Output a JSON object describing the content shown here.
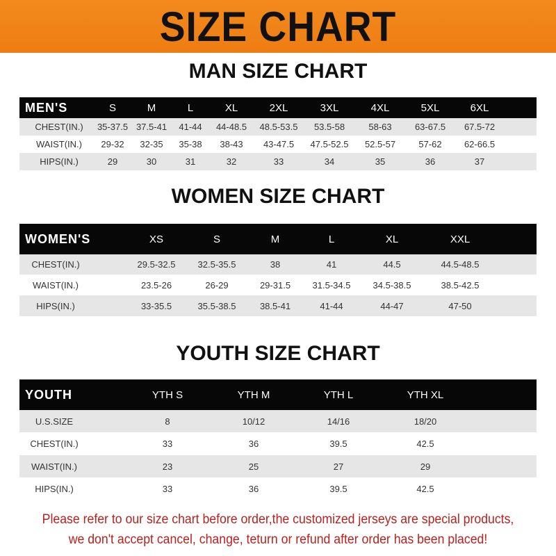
{
  "banner_title": "SIZE CHART",
  "colors": {
    "banner": "#f08418",
    "header_row": "#070707",
    "note": "#b8221e"
  },
  "men": {
    "title": "MAN SIZE CHART",
    "header": [
      "MEN'S",
      "S",
      "M",
      "L",
      "XL",
      "2XL",
      "3XL",
      "4XL",
      "5XL",
      "6XL"
    ],
    "rows": [
      [
        "CHEST(IN.)",
        "35-37.5",
        "37.5-41",
        "41-44",
        "44-48.5",
        "48.5-53.5",
        "53.5-58",
        "58-63",
        "63-67.5",
        "67.5-72"
      ],
      [
        "WAIST(IN.)",
        "29-32",
        "32-35",
        "35-38",
        "38-43",
        "43-47.5",
        "47.5-52.5",
        "52.5-57",
        "57-62",
        "62-66.5"
      ],
      [
        "HIPS(IN.)",
        "29",
        "30",
        "31",
        "32",
        "33",
        "34",
        "35",
        "36",
        "37"
      ]
    ]
  },
  "women": {
    "title": "WOMEN SIZE CHART",
    "header": [
      "WOMEN'S",
      "XS",
      "S",
      "M",
      "L",
      "XL",
      "XXL"
    ],
    "rows": [
      [
        "CHEST(IN.)",
        "29.5-32.5",
        "32.5-35.5",
        "38",
        "41",
        "44.5",
        "44.5-48.5"
      ],
      [
        "WAIST(IN.)",
        "23.5-26",
        "26-29",
        "29-31.5",
        "31.5-34.5",
        "34.5-38.5",
        "38.5-42.5"
      ],
      [
        "HIPS(IN.)",
        "33-35.5",
        "35.5-38.5",
        "38.5-41",
        "41-44",
        "44-47",
        "47-50"
      ]
    ]
  },
  "youth": {
    "title": "YOUTH SIZE CHART",
    "header": [
      "YOUTH",
      "YTH S",
      "YTH M",
      "YTH L",
      "YTH XL"
    ],
    "rows": [
      [
        "U.S.SIZE",
        "8",
        "10/12",
        "14/16",
        "18/20"
      ],
      [
        "CHEST(IN.)",
        "33",
        "36",
        "39.5",
        "42.5"
      ],
      [
        "WAIST(IN.)",
        "23",
        "25",
        "27",
        "29"
      ],
      [
        "HIPS(IN.)",
        "33",
        "36",
        "39.5",
        "42.5"
      ]
    ]
  },
  "note": {
    "line1": "Please refer to our size chart before order,the customized jerseys are special products,",
    "line2": "we don't accept cancel, change, teturn or refund after order has been placed!"
  }
}
